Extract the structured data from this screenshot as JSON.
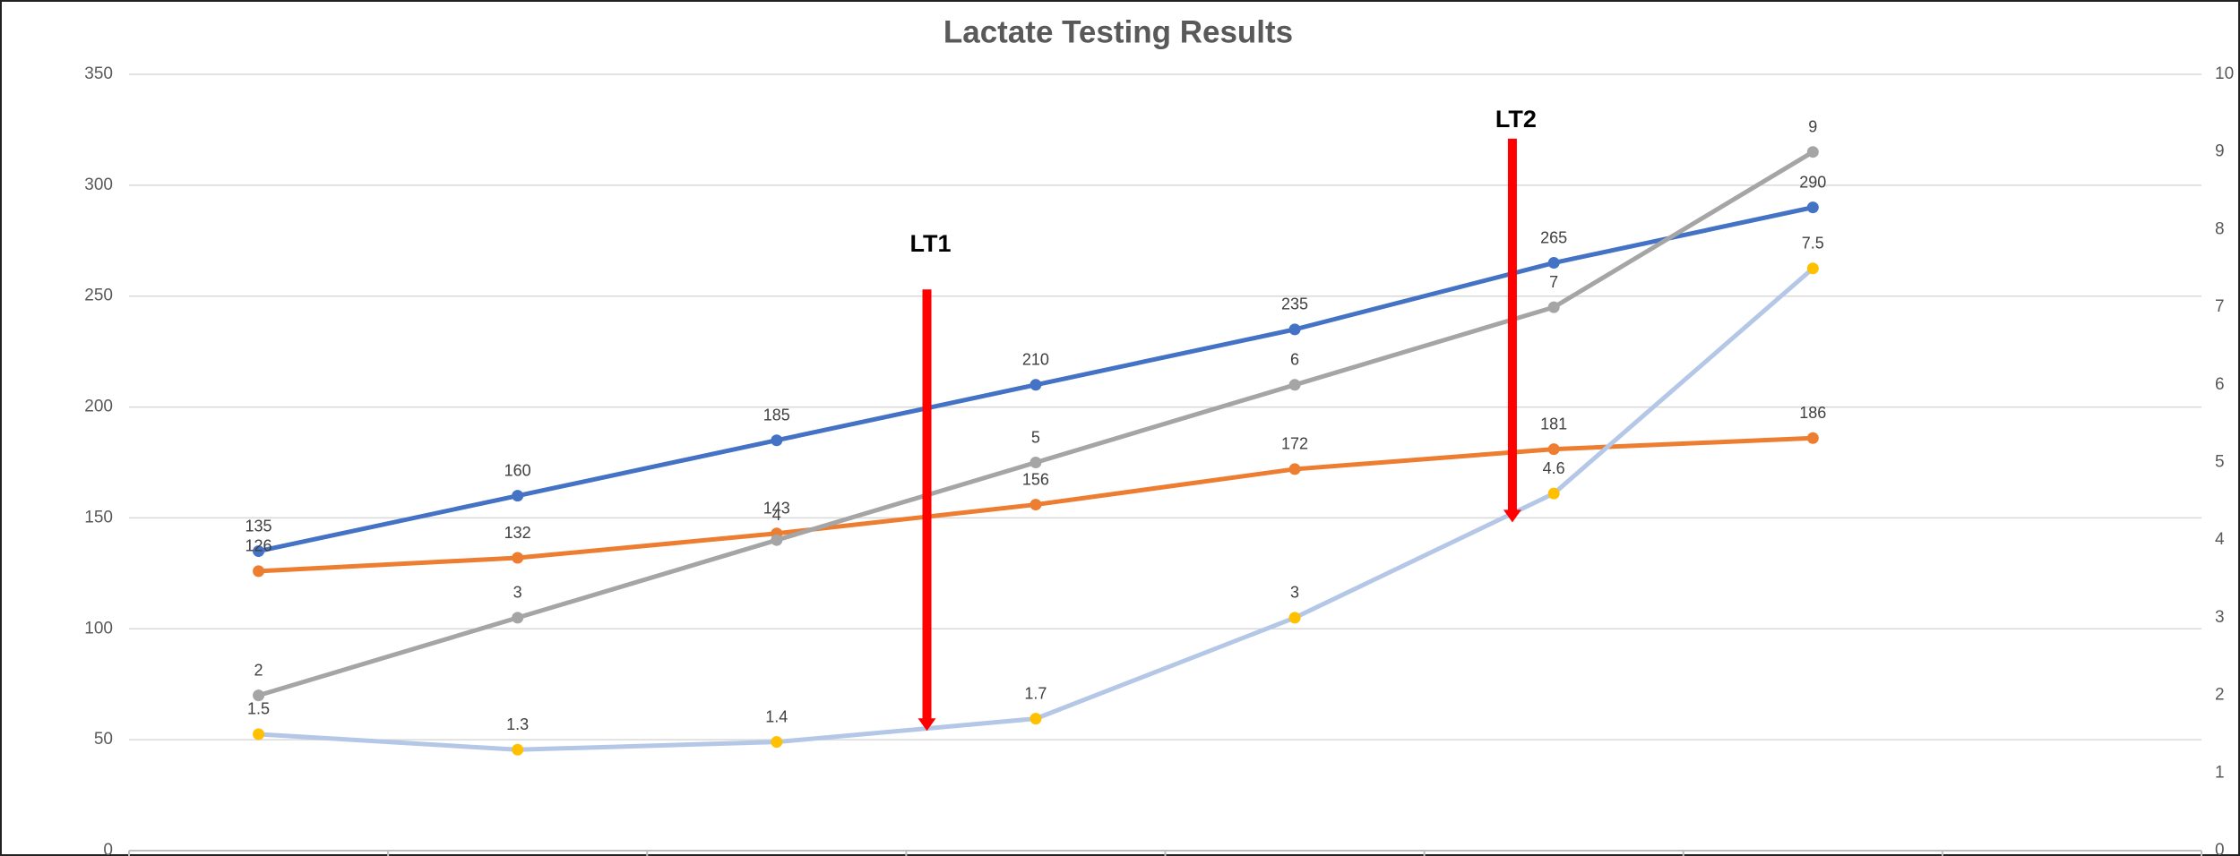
{
  "chart_data": {
    "type": "line",
    "title": "Lactate Testing Results",
    "categories": [
      null,
      null,
      null,
      null,
      null,
      null,
      null,
      null
    ],
    "series": [
      {
        "color": "#4472c4",
        "marker_color": "#4472c4",
        "values": [
          135,
          160,
          185,
          210,
          235,
          265,
          290,
          null
        ]
      },
      {
        "color": "#ed7d31",
        "marker_color": "#ed7d31",
        "values": [
          126,
          132,
          143,
          156,
          172,
          181,
          186,
          null
        ]
      },
      {
        "color": "#a5a5a5",
        "marker_color": "#a5a5a5",
        "axis": "y2",
        "values": [
          2,
          3,
          4,
          5,
          6,
          7,
          9,
          null
        ]
      },
      {
        "color": "#b4c7e7",
        "marker_color": "#ffc000",
        "axis": "y2",
        "values": [
          1.5,
          1.3,
          1.4,
          1.7,
          3,
          4.6,
          7.5,
          null
        ]
      }
    ],
    "ylim": [
      0,
      350
    ],
    "yticks": [
      0,
      50,
      100,
      150,
      200,
      250,
      300,
      350
    ],
    "y2lim": [
      0,
      10
    ],
    "y2ticks": [
      0,
      1,
      2,
      3,
      4,
      5,
      6,
      7,
      8,
      9,
      10
    ],
    "grid": true,
    "annotations": [
      {
        "text": "LT1",
        "color": "#ff0000"
      },
      {
        "text": "LT2",
        "color": "#ff0000"
      }
    ]
  }
}
